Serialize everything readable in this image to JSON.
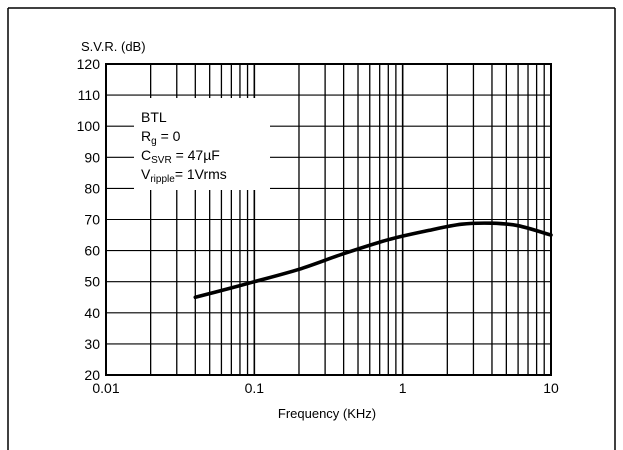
{
  "chart_data": {
    "type": "line",
    "title": "",
    "ylabel": "S.V.R. (dB)",
    "xlabel": "Frequency (KHz)",
    "x_scale": "log",
    "xlim": [
      0.01,
      10
    ],
    "ylim": [
      20,
      120
    ],
    "x_ticks": [
      0.01,
      0.1,
      1,
      10
    ],
    "x_tick_labels": [
      "0.01",
      "0.1",
      "1",
      "10"
    ],
    "y_ticks": [
      20,
      30,
      40,
      50,
      60,
      70,
      80,
      90,
      100,
      110,
      120
    ],
    "y_tick_labels": [
      "20",
      "30",
      "40",
      "50",
      "60",
      "70",
      "80",
      "90",
      "100",
      "110",
      "120"
    ],
    "grid": true,
    "annotation_lines": [
      {
        "main": "BTL",
        "sub": "",
        "rest": ""
      },
      {
        "main": "R",
        "sub": "g",
        "rest": " = 0"
      },
      {
        "main": "C",
        "sub": "SVR",
        "rest": " = 47µF"
      },
      {
        "main": "V",
        "sub": "ripple",
        "rest": "= 1Vrms"
      }
    ],
    "series": [
      {
        "x": [
          0.04,
          0.07,
          0.1,
          0.2,
          0.4,
          0.8,
          1.5,
          2.5,
          4,
          6,
          10
        ],
        "y": [
          45,
          48,
          50,
          54,
          59,
          63.5,
          66.5,
          68.5,
          68.8,
          68,
          65
        ]
      }
    ]
  },
  "colors": {
    "line": "#000000",
    "grid": "#000000",
    "background": "#ffffff"
  }
}
